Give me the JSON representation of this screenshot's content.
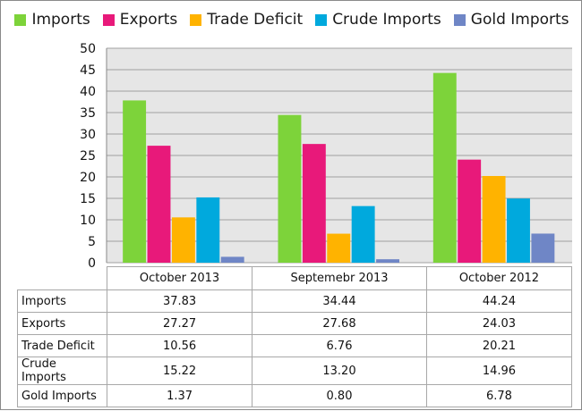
{
  "chart_data": {
    "type": "bar",
    "title": "",
    "xlabel": "",
    "ylabel": "",
    "ylim": [
      0,
      50
    ],
    "yticks": [
      0,
      5,
      10,
      15,
      20,
      25,
      30,
      35,
      40,
      45,
      50
    ],
    "grid": true,
    "legend": "top",
    "categories": [
      "October 2013",
      "Septemebr 2013",
      "October 2012"
    ],
    "series": [
      {
        "name": "Imports",
        "color": "#7dd33a",
        "values": [
          37.83,
          34.44,
          44.24
        ],
        "display": [
          "37.83",
          "34.44",
          "44.24"
        ]
      },
      {
        "name": "Exports",
        "color": "#e8197a",
        "values": [
          27.27,
          27.68,
          24.03
        ],
        "display": [
          "27.27",
          "27.68",
          "24.03"
        ]
      },
      {
        "name": "Trade Deficit",
        "color": "#ffb300",
        "values": [
          10.56,
          6.76,
          20.21
        ],
        "display": [
          "10.56",
          "6.76",
          "20.21"
        ]
      },
      {
        "name": "Crude Imports",
        "color": "#00a9dd",
        "values": [
          15.22,
          13.2,
          14.96
        ],
        "display": [
          "15.22",
          "13.20",
          "14.96"
        ]
      },
      {
        "name": "Gold Imports",
        "color": "#6f86c6",
        "values": [
          1.37,
          0.8,
          6.78
        ],
        "display": [
          "1.37",
          "0.80",
          "6.78"
        ]
      }
    ]
  }
}
